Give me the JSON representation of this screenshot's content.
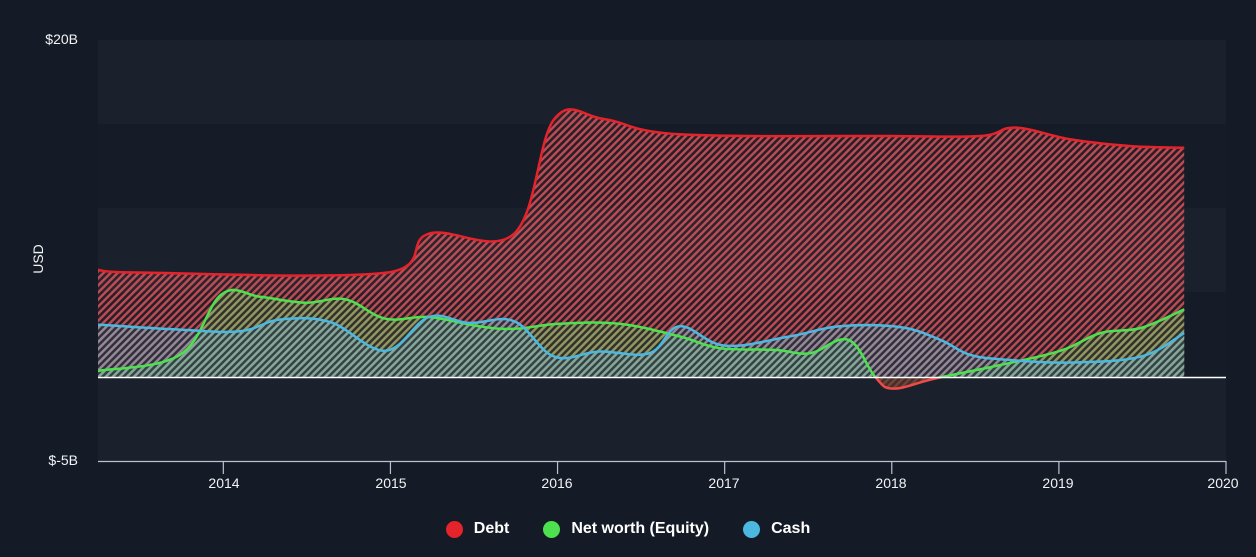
{
  "chart": {
    "y_axis_label": "USD",
    "y_ticks": [
      {
        "label": "$20B",
        "value": 20
      },
      {
        "label": "$-5B",
        "value": -5
      }
    ],
    "x_ticks": [
      "2014",
      "2015",
      "2016",
      "2017",
      "2018",
      "2019",
      "2020"
    ],
    "legend": [
      {
        "label": "Debt",
        "color": "#e5232b"
      },
      {
        "label": "Net worth (Equity)",
        "color": "#4de04f"
      },
      {
        "label": "Cash",
        "color": "#4cb8e0"
      }
    ]
  },
  "chart_data": {
    "type": "area",
    "title": "",
    "xlabel": "",
    "ylabel": "USD",
    "ylim": [
      -5,
      20
    ],
    "xlim": [
      2013.25,
      2020.0
    ],
    "x_tick_labels": [
      "2014",
      "2015",
      "2016",
      "2017",
      "2018",
      "2019",
      "2020"
    ],
    "y_tick_labels": [
      "$20B",
      "$-5B"
    ],
    "units": "USD billions",
    "grid": "horizontal bands",
    "legend_position": "bottom",
    "series": [
      {
        "name": "Debt",
        "color": "#e5232b",
        "x": [
          2013.25,
          2013.44,
          2014.99,
          2015.23,
          2015.74,
          2015.98,
          2016.28,
          2016.73,
          2017.99,
          2018.53,
          2018.74,
          2019.07,
          2019.43,
          2019.75
        ],
        "values": [
          6.35,
          6.2,
          6.2,
          8.5,
          8.5,
          15.3,
          15.3,
          14.4,
          14.3,
          14.3,
          14.8,
          14.1,
          13.7,
          13.6
        ]
      },
      {
        "name": "Net worth (Equity)",
        "color": "#4de04f",
        "x": [
          2013.25,
          2013.74,
          2013.99,
          2014.22,
          2014.49,
          2014.73,
          2014.97,
          2015.23,
          2015.53,
          2015.74,
          2016.01,
          2016.37,
          2016.73,
          2016.97,
          2017.3,
          2017.51,
          2017.74,
          2017.9,
          2018.01,
          2018.26,
          2018.65,
          2019.01,
          2019.25,
          2019.49,
          2019.75
        ],
        "values": [
          0.35,
          1.3,
          4.9,
          4.75,
          4.4,
          4.6,
          3.45,
          3.55,
          3.0,
          2.85,
          3.15,
          3.15,
          2.4,
          1.7,
          1.6,
          1.4,
          2.2,
          0.0,
          -0.7,
          -0.1,
          0.7,
          1.55,
          2.6,
          2.9,
          4.0
        ]
      },
      {
        "name": "Cash",
        "color": "#4cb8e0",
        "x": [
          2013.25,
          2013.74,
          2014.1,
          2014.34,
          2014.64,
          2014.97,
          2015.23,
          2015.47,
          2015.74,
          2015.98,
          2016.25,
          2016.55,
          2016.73,
          2017.0,
          2017.39,
          2017.69,
          2018.05,
          2018.29,
          2018.47,
          2018.71,
          2019.07,
          2019.49,
          2019.75
        ],
        "values": [
          3.1,
          2.8,
          2.7,
          3.4,
          3.25,
          1.55,
          3.55,
          3.2,
          3.3,
          1.2,
          1.5,
          1.4,
          3.0,
          1.85,
          2.4,
          3.0,
          2.95,
          2.2,
          1.3,
          1.0,
          0.85,
          1.2,
          2.6
        ]
      }
    ]
  }
}
